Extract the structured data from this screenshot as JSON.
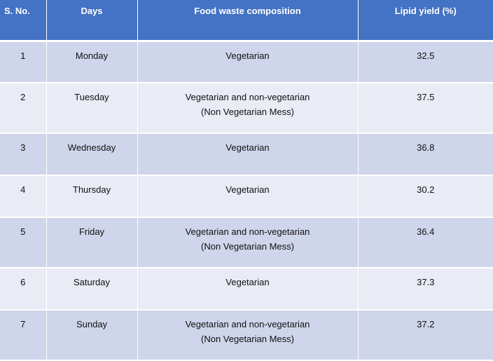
{
  "table": {
    "headers": [
      "S. No.",
      "Days",
      "Food waste composition",
      "Lipid yield (%)"
    ],
    "rows": [
      {
        "sno": "1",
        "day": "Monday",
        "composition": [
          "Vegetarian"
        ],
        "lipid_yield": "32.5"
      },
      {
        "sno": "2",
        "day": "Tuesday",
        "composition": [
          "Vegetarian and non-vegetarian",
          "(Non Vegetarian Mess)"
        ],
        "lipid_yield": "37.5"
      },
      {
        "sno": "3",
        "day": "Wednesday",
        "composition": [
          "Vegetarian"
        ],
        "lipid_yield": "36.8"
      },
      {
        "sno": "4",
        "day": "Thursday",
        "composition": [
          "Vegetarian"
        ],
        "lipid_yield": "30.2"
      },
      {
        "sno": "5",
        "day": "Friday",
        "composition": [
          "Vegetarian and non-vegetarian",
          "(Non Vegetarian Mess)"
        ],
        "lipid_yield": "36.4"
      },
      {
        "sno": "6",
        "day": "Saturday",
        "composition": [
          "Vegetarian"
        ],
        "lipid_yield": "37.3"
      },
      {
        "sno": "7",
        "day": "Sunday",
        "composition": [
          "Vegetarian and non-vegetarian",
          "(Non Vegetarian Mess)"
        ],
        "lipid_yield": "37.2"
      }
    ]
  },
  "colors": {
    "header_bg": "#4472c4",
    "row_dark": "#cfd5ea",
    "row_light": "#e9ebf5"
  }
}
